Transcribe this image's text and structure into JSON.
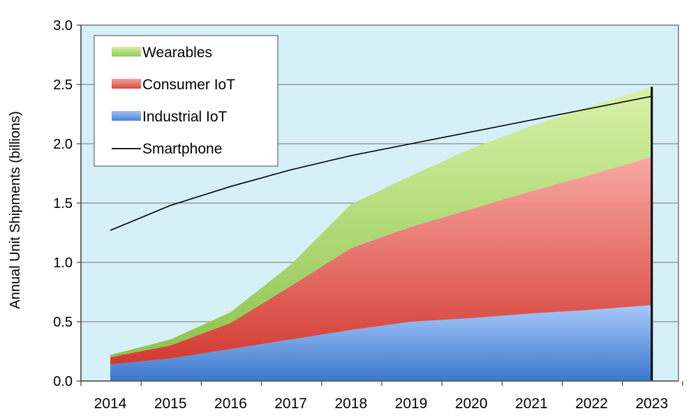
{
  "chart_data": {
    "type": "area",
    "stacked": true,
    "title": "",
    "xlabel": "",
    "ylabel": "Annual Unit Shipments (billions)",
    "x": [
      "2014",
      "2015",
      "2016",
      "2017",
      "2018",
      "2019",
      "2020",
      "2021",
      "2022",
      "2023"
    ],
    "ylim": [
      0,
      3.0
    ],
    "yticks": [
      "0.0",
      "0.5",
      "1.0",
      "1.5",
      "2.0",
      "2.5",
      "3.0"
    ],
    "grid": "horizontal",
    "legend_position": "top-left",
    "series": [
      {
        "name": "Industrial IoT",
        "kind": "area",
        "color": "#6f9fe3",
        "values": [
          0.14,
          0.19,
          0.27,
          0.35,
          0.43,
          0.5,
          0.53,
          0.57,
          0.6,
          0.64
        ]
      },
      {
        "name": "Consumer IoT",
        "kind": "area",
        "color": "#e05555",
        "values": [
          0.06,
          0.11,
          0.22,
          0.45,
          0.69,
          0.8,
          0.92,
          1.03,
          1.14,
          1.25
        ]
      },
      {
        "name": "Wearables",
        "kind": "area",
        "color": "#a6d868",
        "values": [
          0.02,
          0.05,
          0.09,
          0.18,
          0.37,
          0.43,
          0.51,
          0.55,
          0.58,
          0.59
        ]
      },
      {
        "name": "Smartphone",
        "kind": "line",
        "color": "#000000",
        "values": [
          1.27,
          1.48,
          1.64,
          1.78,
          1.9,
          2.0,
          2.1,
          2.2,
          2.3,
          2.4
        ]
      }
    ]
  }
}
